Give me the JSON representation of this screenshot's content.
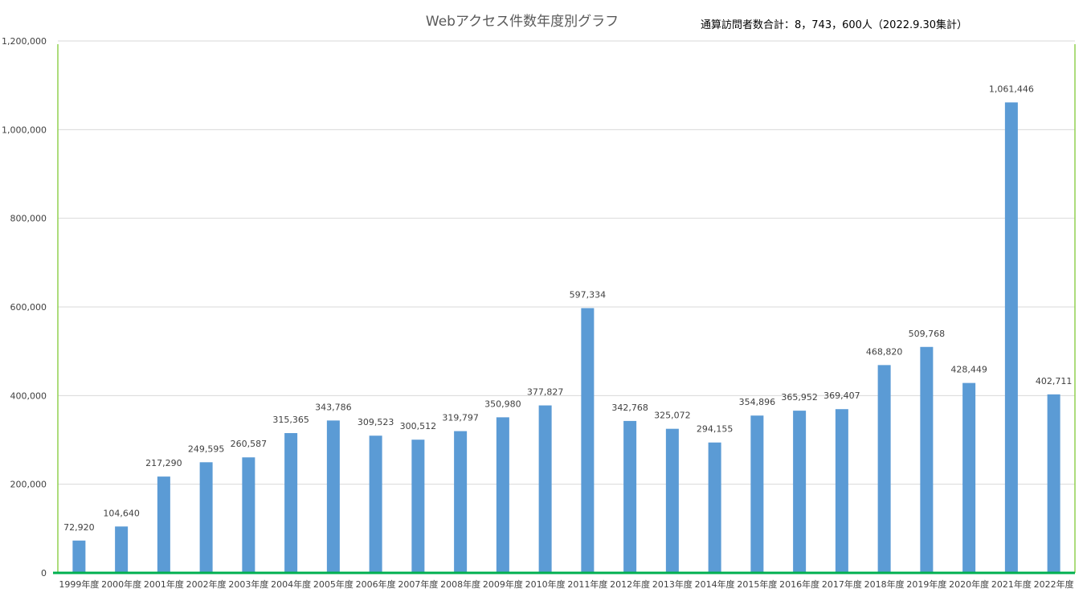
{
  "chart_data": {
    "type": "bar",
    "title": "Webアクセス件数年度別グラフ",
    "annotation": "通算訪問者数合計：8，743，600人（2022.9.30集計）",
    "categories": [
      "1999年度",
      "2000年度",
      "2001年度",
      "2002年度",
      "2003年度",
      "2004年度",
      "2005年度",
      "2006年度",
      "2007年度",
      "2008年度",
      "2009年度",
      "2010年度",
      "2011年度",
      "2012年度",
      "2013年度",
      "2014年度",
      "2015年度",
      "2016年度",
      "2017年度",
      "2018年度",
      "2019年度",
      "2020年度",
      "2021年度",
      "2022年度"
    ],
    "values": [
      72920,
      104640,
      217290,
      249595,
      260587,
      315365,
      343786,
      309523,
      300512,
      319797,
      350980,
      377827,
      597334,
      342768,
      325072,
      294155,
      354896,
      365952,
      369407,
      468820,
      509768,
      428449,
      1061446,
      402711
    ],
    "value_labels": [
      "72,920",
      "104,640",
      "217,290",
      "249,595",
      "260,587",
      "315,365",
      "343,786",
      "309,523",
      "300,512",
      "319,797",
      "350,980",
      "377,827",
      "597,334",
      "342,768",
      "325,072",
      "294,155",
      "354,896",
      "365,952",
      "369,407",
      "468,820",
      "509,768",
      "428,449",
      "1,061,446",
      "402,711"
    ],
    "ylim": [
      0,
      1200000
    ],
    "yticks": [
      0,
      200000,
      400000,
      600000,
      800000,
      1000000,
      1200000
    ],
    "ytick_labels": [
      "0",
      "200,000",
      "400,000",
      "600,000",
      "800,000",
      "1,000,000",
      "1,200,000"
    ],
    "grid": true,
    "legend": "none",
    "colors": {
      "bar": "#5B9BD5",
      "gridline": "#D9D9D9",
      "axis": "#00B050",
      "frame": "#92D050"
    }
  }
}
